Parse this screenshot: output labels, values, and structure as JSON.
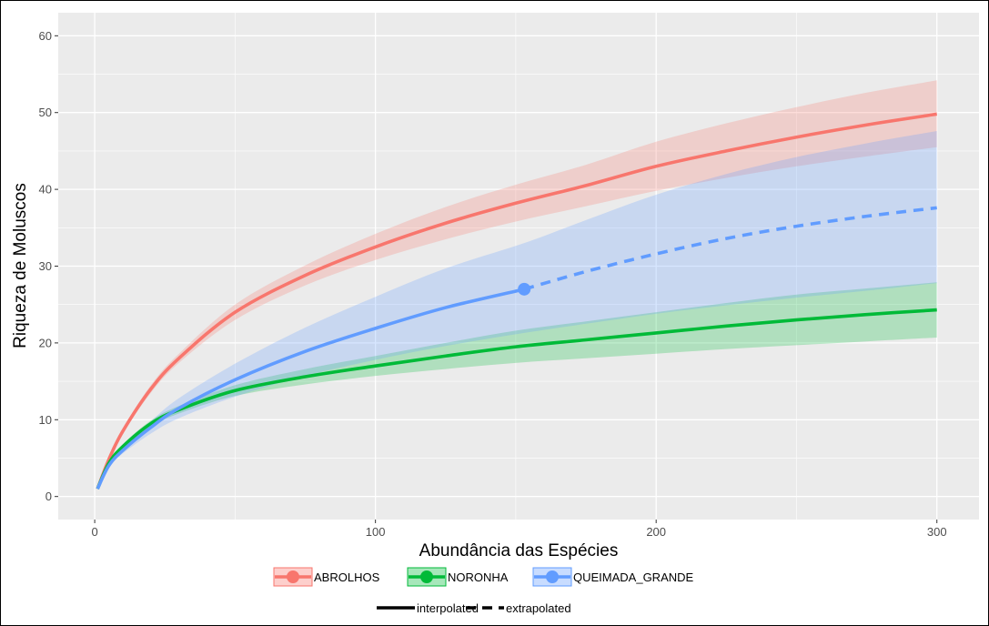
{
  "chart_data": {
    "type": "line",
    "xlabel": "Abundância das Espécies",
    "ylabel": "Riqueza de Moluscos",
    "xlim": [
      -13,
      315
    ],
    "ylim": [
      -3,
      63
    ],
    "x_ticks": [
      0,
      100,
      200,
      300
    ],
    "y_ticks": [
      0,
      10,
      20,
      30,
      40,
      50,
      60
    ],
    "grid": true,
    "legend_position": "bottom",
    "series": [
      {
        "name": "ABROLHOS",
        "color": "#F8766D",
        "observed_x": 300,
        "points": [
          [
            1,
            1
          ],
          [
            5,
            4.8
          ],
          [
            10,
            8.5
          ],
          [
            20,
            14
          ],
          [
            30,
            18
          ],
          [
            50,
            24
          ],
          [
            75,
            28.8
          ],
          [
            100,
            32.5
          ],
          [
            125,
            35.6
          ],
          [
            150,
            38.2
          ],
          [
            175,
            40.5
          ],
          [
            200,
            43
          ],
          [
            225,
            45
          ],
          [
            250,
            46.8
          ],
          [
            275,
            48.4
          ],
          [
            300,
            49.8
          ]
        ],
        "lower": [
          [
            1,
            1
          ],
          [
            5,
            4.6
          ],
          [
            10,
            8.2
          ],
          [
            20,
            13.5
          ],
          [
            30,
            17.4
          ],
          [
            50,
            23
          ],
          [
            75,
            27.5
          ],
          [
            100,
            30.8
          ],
          [
            125,
            33.5
          ],
          [
            150,
            35.8
          ],
          [
            175,
            37.8
          ],
          [
            200,
            39.8
          ],
          [
            225,
            41.5
          ],
          [
            250,
            43
          ],
          [
            275,
            44.3
          ],
          [
            300,
            45.5
          ]
        ],
        "upper": [
          [
            1,
            1
          ],
          [
            5,
            5
          ],
          [
            10,
            8.8
          ],
          [
            20,
            14.5
          ],
          [
            30,
            18.6
          ],
          [
            50,
            25
          ],
          [
            75,
            30.1
          ],
          [
            100,
            34.2
          ],
          [
            125,
            37.7
          ],
          [
            150,
            40.6
          ],
          [
            175,
            43.2
          ],
          [
            200,
            46.2
          ],
          [
            225,
            48.6
          ],
          [
            250,
            50.7
          ],
          [
            275,
            52.6
          ],
          [
            300,
            54.2
          ]
        ]
      },
      {
        "name": "NORONHA",
        "color": "#00BA38",
        "observed_x": 300,
        "points": [
          [
            1,
            1
          ],
          [
            5,
            4.3
          ],
          [
            10,
            6.5
          ],
          [
            20,
            9.5
          ],
          [
            30,
            11.3
          ],
          [
            50,
            13.8
          ],
          [
            75,
            15.6
          ],
          [
            100,
            17
          ],
          [
            125,
            18.3
          ],
          [
            150,
            19.5
          ],
          [
            175,
            20.4
          ],
          [
            200,
            21.3
          ],
          [
            225,
            22.2
          ],
          [
            250,
            23
          ],
          [
            275,
            23.7
          ],
          [
            300,
            24.3
          ]
        ],
        "lower": [
          [
            1,
            1
          ],
          [
            5,
            4.1
          ],
          [
            10,
            6.2
          ],
          [
            20,
            9.1
          ],
          [
            30,
            10.8
          ],
          [
            50,
            13.1
          ],
          [
            75,
            14.6
          ],
          [
            100,
            15.7
          ],
          [
            125,
            16.6
          ],
          [
            150,
            17.4
          ],
          [
            175,
            18
          ],
          [
            200,
            18.6
          ],
          [
            225,
            19.2
          ],
          [
            250,
            19.7
          ],
          [
            275,
            20.2
          ],
          [
            300,
            20.7
          ]
        ],
        "upper": [
          [
            1,
            1
          ],
          [
            5,
            4.5
          ],
          [
            10,
            6.8
          ],
          [
            20,
            9.9
          ],
          [
            30,
            11.8
          ],
          [
            50,
            14.5
          ],
          [
            75,
            16.6
          ],
          [
            100,
            18.3
          ],
          [
            125,
            20
          ],
          [
            150,
            21.6
          ],
          [
            175,
            22.8
          ],
          [
            200,
            24
          ],
          [
            225,
            25.2
          ],
          [
            250,
            26.3
          ],
          [
            275,
            27.1
          ],
          [
            300,
            27.9
          ]
        ]
      },
      {
        "name": "QUEIMADA_GRANDE",
        "color": "#619CFF",
        "observed_x": 153,
        "points": [
          [
            1,
            1
          ],
          [
            5,
            4
          ],
          [
            10,
            6
          ],
          [
            20,
            9
          ],
          [
            30,
            11.5
          ],
          [
            50,
            15.2
          ],
          [
            75,
            18.9
          ],
          [
            100,
            21.9
          ],
          [
            125,
            24.6
          ],
          [
            153,
            27
          ],
          [
            175,
            29.3
          ],
          [
            200,
            31.6
          ],
          [
            225,
            33.6
          ],
          [
            250,
            35.2
          ],
          [
            275,
            36.5
          ],
          [
            300,
            37.6
          ]
        ],
        "lower": [
          [
            1,
            1
          ],
          [
            5,
            3.8
          ],
          [
            10,
            5.6
          ],
          [
            20,
            8.2
          ],
          [
            30,
            10.2
          ],
          [
            50,
            13
          ],
          [
            75,
            15.7
          ],
          [
            100,
            17.8
          ],
          [
            125,
            19.6
          ],
          [
            153,
            21.3
          ],
          [
            175,
            22.5
          ],
          [
            200,
            23.8
          ],
          [
            225,
            24.9
          ],
          [
            250,
            25.9
          ],
          [
            275,
            26.8
          ],
          [
            300,
            27.8
          ]
        ],
        "upper": [
          [
            1,
            1
          ],
          [
            5,
            4.2
          ],
          [
            10,
            6.4
          ],
          [
            20,
            9.8
          ],
          [
            30,
            12.8
          ],
          [
            50,
            17.3
          ],
          [
            75,
            22
          ],
          [
            100,
            26
          ],
          [
            125,
            29.7
          ],
          [
            153,
            33
          ],
          [
            175,
            36
          ],
          [
            200,
            39.3
          ],
          [
            225,
            42
          ],
          [
            250,
            44.2
          ],
          [
            275,
            46
          ],
          [
            300,
            47.6
          ]
        ]
      }
    ],
    "method_legend": [
      {
        "label": "interpolated",
        "dash": "solid"
      },
      {
        "label": "extrapolated",
        "dash": "dashed"
      }
    ]
  }
}
